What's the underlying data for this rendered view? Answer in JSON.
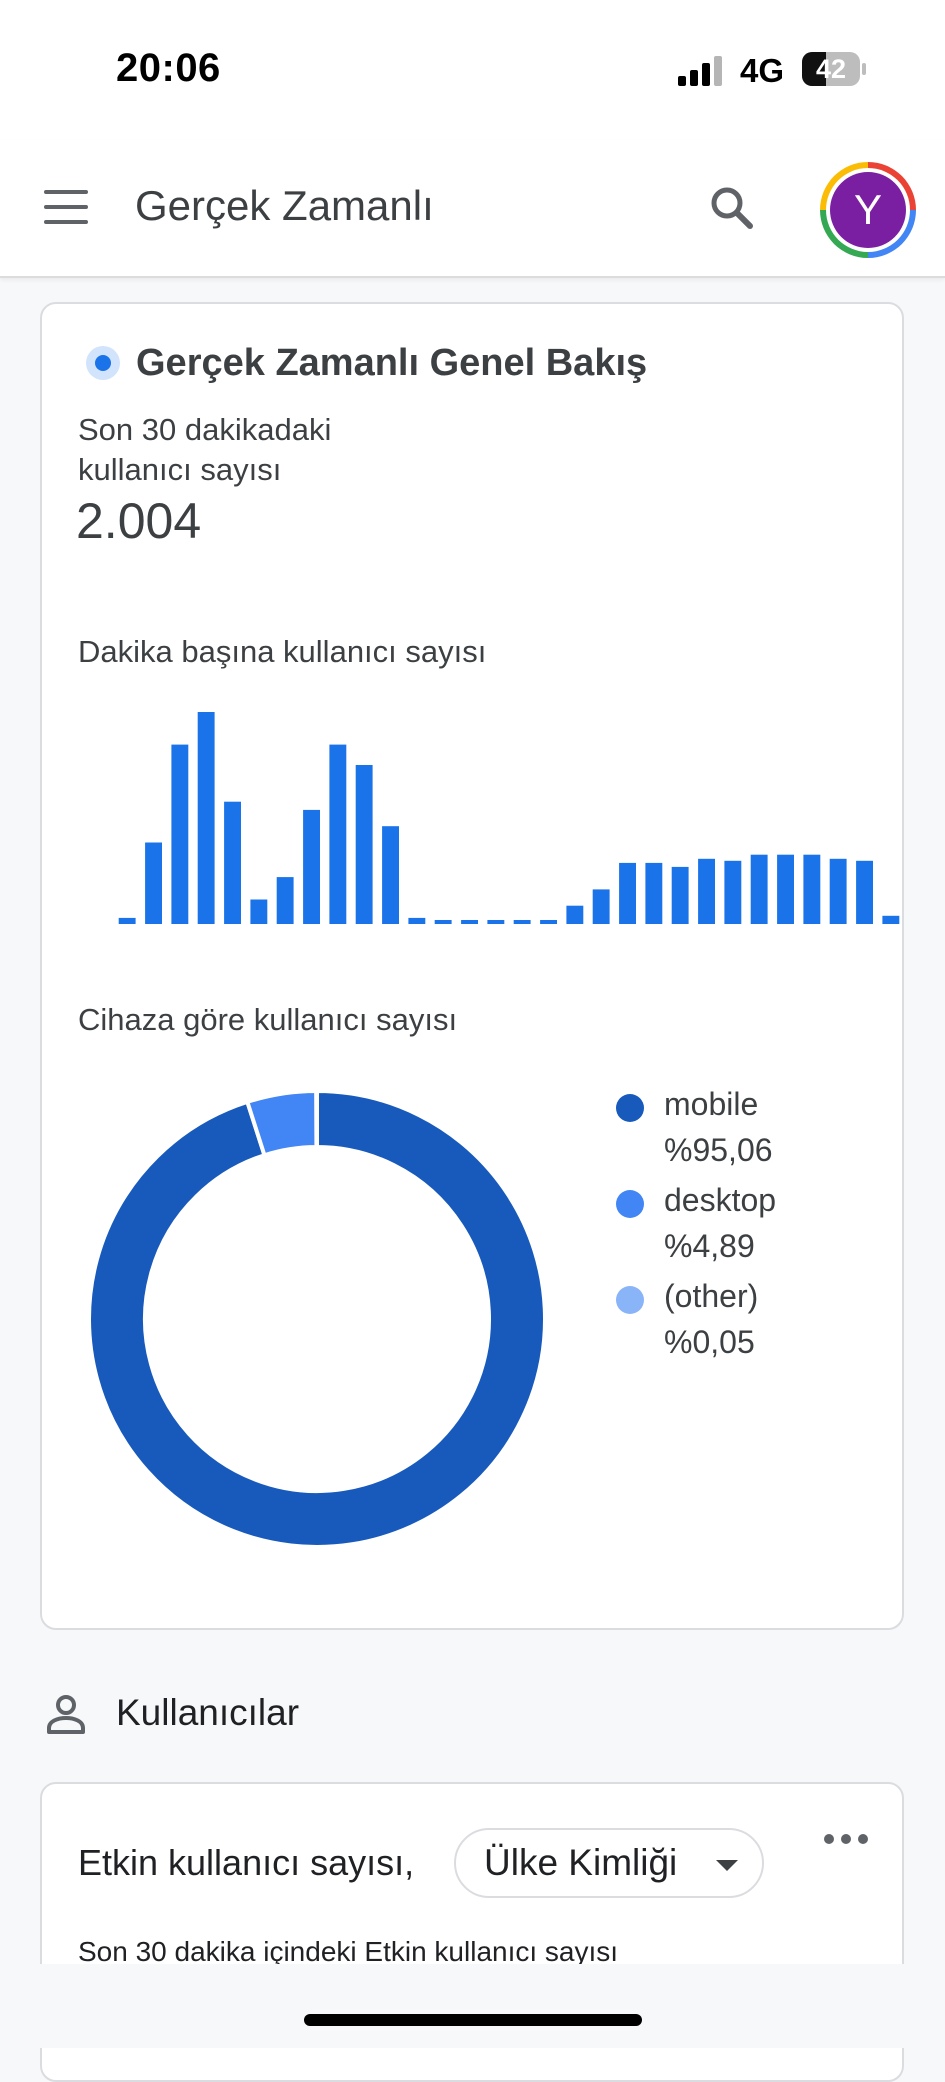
{
  "status_bar": {
    "time": "20:06",
    "network": "4G",
    "battery_percent": "42",
    "battery_level": 0.42
  },
  "app_bar": {
    "title": "Gerçek Zamanlı",
    "avatar_letter": "Y"
  },
  "overview_card": {
    "title": "Gerçek Zamanlı Genel Bakış",
    "metric_label": "Son 30 dakikadaki kullanıcı sayısı",
    "metric_value": "2.004",
    "per_minute_label": "Dakika başına kullanıcı sayısı",
    "device_label": "Cihaza göre kullanıcı sayısı"
  },
  "chart_data": [
    {
      "type": "bar",
      "title": "Dakika başına kullanıcı sayısı",
      "values": [
        3,
        40,
        88,
        104,
        60,
        12,
        23,
        56,
        88,
        78,
        48,
        3,
        1,
        1,
        1,
        1,
        1,
        9,
        17,
        30,
        30,
        28,
        32,
        31,
        34,
        34,
        34,
        32,
        31,
        4
      ],
      "ylim": [
        0,
        105
      ],
      "color": "#1a73e8"
    },
    {
      "type": "pie",
      "title": "Cihaza göre kullanıcı sayısı",
      "donut": true,
      "slices": [
        {
          "label": "mobile",
          "value": 95.06,
          "value_label": "%95,06",
          "color": "#185abc"
        },
        {
          "label": "desktop",
          "value": 4.89,
          "value_label": "%4,89",
          "color": "#4285f4"
        },
        {
          "label": "(other)",
          "value": 0.05,
          "value_label": "%0,05",
          "color": "#8ab4f8"
        }
      ],
      "legend_position": "right"
    }
  ],
  "section": {
    "title": "Kullanıcılar"
  },
  "active_users_card": {
    "title": "Etkin kullanıcı sayısı,",
    "dropdown_value": "Ülke Kimliği",
    "subtitle": "Son 30 dakika içindeki Etkin kullanıcı sayısı"
  },
  "colors": {
    "accent": "#1a73e8",
    "avatar": "#7b1fa2"
  },
  "icons": [
    "menu-icon",
    "search-icon",
    "person-icon",
    "more-icon",
    "chevron-down-icon"
  ]
}
